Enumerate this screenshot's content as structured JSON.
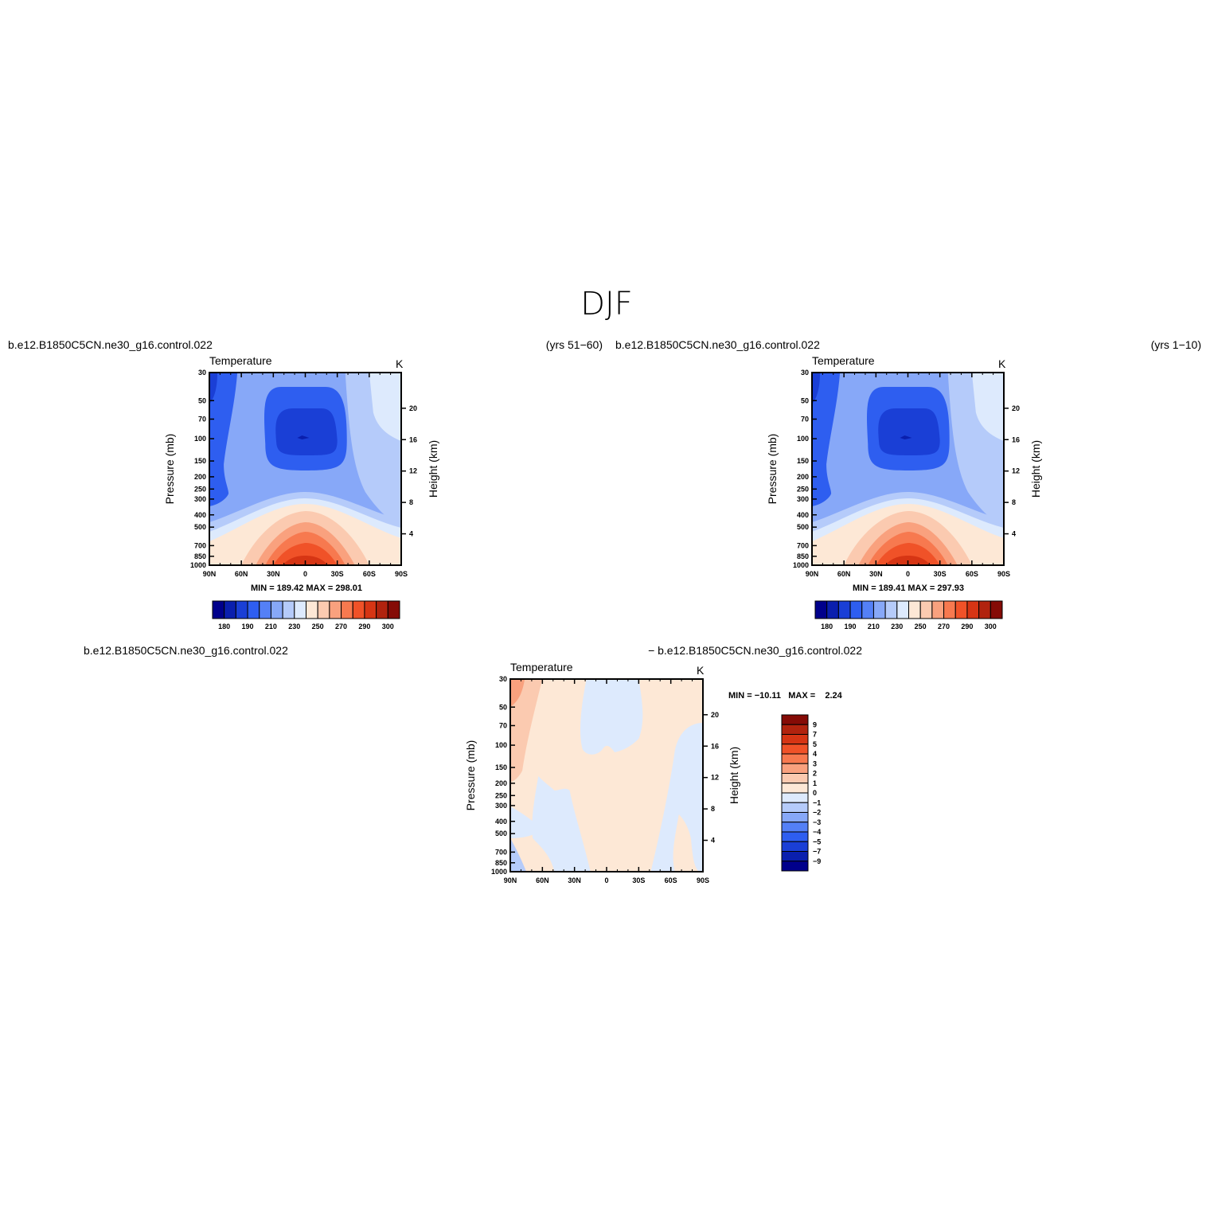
{
  "figure": {
    "title": "DJF",
    "panels": [
      {
        "left_label": "b.e12.B1850C5CN.ne30_g16.control.022",
        "right_label": "(yrs 51−60)",
        "variable": "Temperature",
        "units": "K",
        "ylabel_left": "Pressure  (mb)",
        "ylabel_right": "Height  (km)",
        "stats": "MIN = 189.42   MAX = 298.01"
      },
      {
        "left_label": "b.e12.B1850C5CN.ne30_g16.control.022",
        "right_label": "(yrs 1−10)",
        "variable": "Temperature",
        "units": "K",
        "ylabel_left": "Pressure  (mb)",
        "ylabel_right": "Height  (km)",
        "stats": "MIN = 189.41   MAX = 297.93"
      },
      {
        "left_label": "b.e12.B1850C5CN.ne30_g16.control.022",
        "right_label": "− b.e12.B1850C5CN.ne30_g16.control.022",
        "variable": "Temperature",
        "units": "K",
        "ylabel_left": "Pressure  (mb)",
        "ylabel_right": "Height  (km)",
        "stats": "MIN = −10.11   MAX =    2.24"
      }
    ]
  },
  "chart_data": [
    {
      "type": "heatmap",
      "title": "Temperature",
      "x_ticks": [
        "90N",
        "60N",
        "30N",
        "0",
        "30S",
        "60S",
        "90S"
      ],
      "y_ticks": [
        "30",
        "50",
        "70",
        "100",
        "150",
        "200",
        "250",
        "300",
        "400",
        "500",
        "700",
        "850",
        "1000"
      ],
      "y_scale": "log",
      "y_range_mb": [
        1000,
        30
      ],
      "height_ticks_km": [
        "4",
        "8",
        "12",
        "16",
        "20"
      ],
      "colorbar": {
        "orientation": "horizontal",
        "labels": [
          "180",
          "190",
          "210",
          "230",
          "250",
          "270",
          "290",
          "300"
        ],
        "colors": [
          "#00008b",
          "#0a1fae",
          "#1a3fd6",
          "#2e5ef0",
          "#5480f6",
          "#87a8f8",
          "#b5cbfa",
          "#ddeafd",
          "#fde8d6",
          "#fbcab0",
          "#f9a17e",
          "#f7794f",
          "#f05228",
          "#d63514",
          "#b1230e",
          "#850b06"
        ]
      },
      "min": 189.42,
      "max": 298.01
    },
    {
      "type": "heatmap",
      "title": "Temperature",
      "x_ticks": [
        "90N",
        "60N",
        "30N",
        "0",
        "30S",
        "60S",
        "90S"
      ],
      "y_ticks": [
        "30",
        "50",
        "70",
        "100",
        "150",
        "200",
        "250",
        "300",
        "400",
        "500",
        "700",
        "850",
        "1000"
      ],
      "y_scale": "log",
      "y_range_mb": [
        1000,
        30
      ],
      "height_ticks_km": [
        "4",
        "8",
        "12",
        "16",
        "20"
      ],
      "colorbar": {
        "orientation": "horizontal",
        "labels": [
          "180",
          "190",
          "210",
          "230",
          "250",
          "270",
          "290",
          "300"
        ],
        "colors": [
          "#00008b",
          "#0a1fae",
          "#1a3fd6",
          "#2e5ef0",
          "#5480f6",
          "#87a8f8",
          "#b5cbfa",
          "#ddeafd",
          "#fde8d6",
          "#fbcab0",
          "#f9a17e",
          "#f7794f",
          "#f05228",
          "#d63514",
          "#b1230e",
          "#850b06"
        ]
      },
      "min": 189.41,
      "max": 297.93
    },
    {
      "type": "heatmap",
      "title": "Temperature",
      "x_ticks": [
        "90N",
        "60N",
        "30N",
        "0",
        "30S",
        "60S",
        "90S"
      ],
      "y_ticks": [
        "30",
        "50",
        "70",
        "100",
        "150",
        "200",
        "250",
        "300",
        "400",
        "500",
        "700",
        "850",
        "1000"
      ],
      "y_scale": "log",
      "y_range_mb": [
        1000,
        30
      ],
      "height_ticks_km": [
        "4",
        "8",
        "12",
        "16",
        "20"
      ],
      "colorbar": {
        "orientation": "vertical",
        "labels": [
          "9",
          "7",
          "5",
          "4",
          "3",
          "2",
          "1",
          "0",
          "−1",
          "−2",
          "−3",
          "−4",
          "−5",
          "−7",
          "−9"
        ],
        "colors": [
          "#850b06",
          "#b1230e",
          "#d63514",
          "#f05228",
          "#f7794f",
          "#f9a17e",
          "#fbcab0",
          "#fde8d6",
          "#ddeafd",
          "#b5cbfa",
          "#87a8f8",
          "#5480f6",
          "#2e5ef0",
          "#1a3fd6",
          "#0a1fae",
          "#00008b"
        ]
      },
      "min": -10.11,
      "max": 2.24
    }
  ]
}
